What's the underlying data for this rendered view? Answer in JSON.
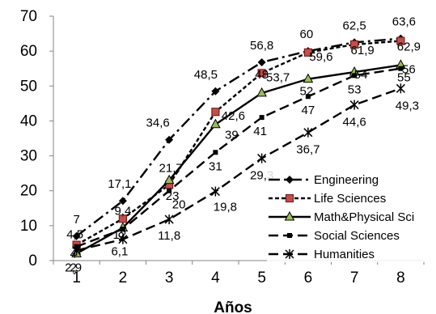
{
  "chart_data": {
    "type": "line",
    "title": "",
    "xlabel": "Años",
    "ylabel": "",
    "x": [
      1,
      2,
      3,
      4,
      5,
      6,
      7,
      8
    ],
    "xlim": [
      0.5,
      8.5
    ],
    "ylim": [
      0,
      70
    ],
    "yticks": [
      0,
      10,
      20,
      30,
      40,
      50,
      60,
      70
    ],
    "grid": false,
    "legend_position": "bottom-right",
    "series": [
      {
        "name": "Engineering",
        "values": [
          7,
          17.1,
          34.6,
          48.5,
          56.8,
          60,
          62.5,
          63.6
        ],
        "labels": [
          "7",
          "17,1",
          "34,6",
          "48,5",
          "56,8",
          "60",
          "62,5",
          "63,6"
        ],
        "color": "#000000",
        "dash": "long-dash-dot",
        "marker": "diamond"
      },
      {
        "name": "Life Sciences",
        "values": [
          4.5,
          12,
          21.7,
          42.6,
          53.7,
          59.6,
          61.9,
          62.9
        ],
        "labels": [
          "4,5",
          "12",
          "21,7",
          "42,6",
          "53,7",
          "59,6",
          "61,9",
          "62,9"
        ],
        "color": "#000000",
        "dash": "short-dash",
        "marker": "square-red"
      },
      {
        "name": "Math&Physical Sci",
        "values": [
          2,
          9.4,
          23,
          39,
          48,
          52,
          54,
          56
        ],
        "labels": [
          "2",
          "9,4",
          "23",
          "39",
          "48",
          "52",
          "54",
          "56"
        ],
        "color": "#000000",
        "dash": "solid",
        "marker": "triangle-green"
      },
      {
        "name": "Social Sciences",
        "values": [
          4,
          9,
          20,
          31,
          41,
          47,
          53,
          55
        ],
        "labels": [
          "4",
          "9",
          "20",
          "31",
          "41",
          "47",
          "53",
          "55"
        ],
        "color": "#000000",
        "dash": "long-dash",
        "marker": "small-square"
      },
      {
        "name": "Humanities",
        "values": [
          2.9,
          6.1,
          11.8,
          19.8,
          29.3,
          36.7,
          44.6,
          49.3
        ],
        "labels": [
          "2,9",
          "6,1",
          "11,8",
          "19,8",
          "29,3",
          "36,7",
          "44,6",
          "49,3"
        ],
        "color": "#000000",
        "dash": "long-dash",
        "marker": "star"
      }
    ]
  }
}
